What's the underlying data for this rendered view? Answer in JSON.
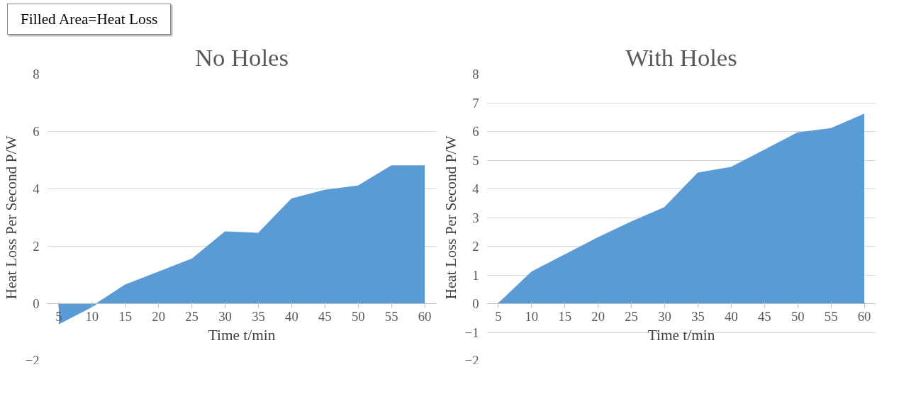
{
  "chart_data": [
    {
      "type": "area",
      "title": "No Holes",
      "xlabel": "Time t/min",
      "ylabel": "Heat Loss Per Second P/W",
      "annotations": [
        "Filled Area=Heat Loss"
      ],
      "categories": [
        "5",
        "10",
        "15",
        "20",
        "25",
        "30",
        "35",
        "40",
        "45",
        "50",
        "55",
        "60"
      ],
      "series": [
        {
          "color": "#5b9bd5",
          "values": [
            -0.7,
            -0.1,
            0.65,
            1.1,
            1.55,
            2.5,
            2.45,
            3.65,
            3.95,
            4.1,
            4.8,
            4.8
          ]
        }
      ],
      "ylim": [
        -2,
        8
      ],
      "yticks": [
        -2,
        0,
        2,
        4,
        6,
        8
      ],
      "grid": "y"
    },
    {
      "type": "area",
      "title": "With Holes",
      "xlabel": "Time t/min",
      "ylabel": "Heat Loss Per Second P/W",
      "categories": [
        "5",
        "10",
        "15",
        "20",
        "25",
        "30",
        "35",
        "40",
        "45",
        "50",
        "55",
        "60"
      ],
      "series": [
        {
          "color": "#5b9bd5",
          "values": [
            0,
            1.1,
            1.7,
            2.3,
            2.85,
            3.35,
            4.55,
            4.75,
            5.35,
            5.95,
            6.1,
            6.6
          ]
        }
      ],
      "ylim": [
        -2,
        8
      ],
      "yticks": [
        -2,
        -1,
        0,
        1,
        2,
        3,
        4,
        5,
        6,
        7,
        8
      ],
      "grid": "y"
    }
  ]
}
